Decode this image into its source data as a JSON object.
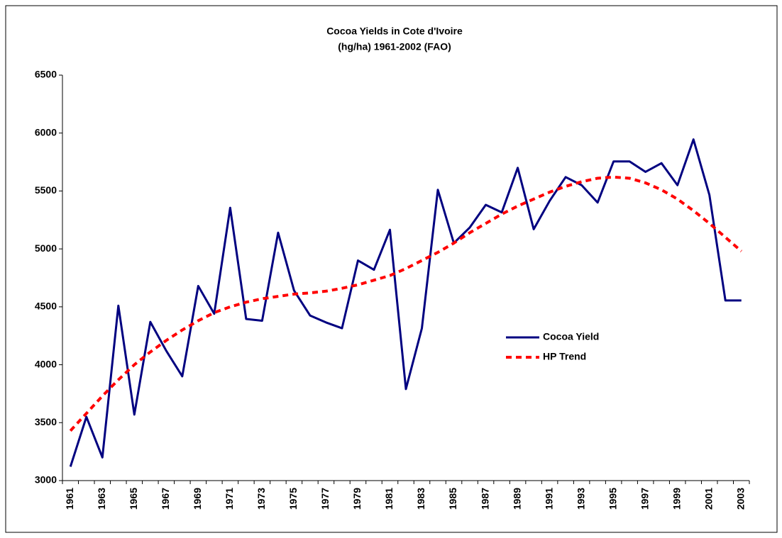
{
  "chart_data": {
    "type": "line",
    "title": "Cocoa Yields in Cote d'Ivoire",
    "subtitle": "(hg/ha) 1961-2002 (FAO)",
    "categories": [
      "1961",
      null,
      "1963",
      null,
      "1965",
      null,
      "1967",
      null,
      "1969",
      null,
      "1971",
      null,
      "1973",
      null,
      "1975",
      null,
      "1977",
      null,
      "1979",
      null,
      "1981",
      null,
      "1983",
      null,
      "1985",
      null,
      "1987",
      null,
      "1989",
      null,
      "1991",
      null,
      "1993",
      null,
      "1995",
      null,
      "1997",
      null,
      "1999",
      null,
      "2001",
      null,
      "2003"
    ],
    "series": [
      {
        "name": "Cocoa Yield",
        "color": "#000080",
        "dash": false,
        "values": [
          3120,
          3550,
          3200,
          4510,
          3570,
          4370,
          4120,
          3900,
          4680,
          4440,
          5355,
          4395,
          4380,
          5140,
          4640,
          4425,
          4365,
          4315,
          4900,
          4820,
          5165,
          3790,
          4315,
          5510,
          5050,
          5185,
          5380,
          5315,
          5700,
          5170,
          5415,
          5620,
          5550,
          5400,
          5755,
          5755,
          5665,
          5740,
          5550,
          5945,
          5465,
          4555,
          4555
        ]
      },
      {
        "name": "HP Trend",
        "color": "#ff0000",
        "dash": true,
        "values": [
          3430,
          3580,
          3730,
          3870,
          4000,
          4110,
          4210,
          4300,
          4380,
          4450,
          4500,
          4540,
          4570,
          4590,
          4610,
          4620,
          4635,
          4660,
          4690,
          4730,
          4770,
          4830,
          4900,
          4970,
          5050,
          5140,
          5220,
          5300,
          5370,
          5430,
          5490,
          5540,
          5580,
          5610,
          5620,
          5610,
          5570,
          5510,
          5430,
          5330,
          5220,
          5100,
          4980
        ]
      }
    ],
    "ylim": [
      3000,
      6500
    ],
    "yticks": [
      3000,
      3500,
      4000,
      4500,
      5000,
      5500,
      6000,
      6500
    ],
    "grid": false,
    "legend": "right"
  }
}
